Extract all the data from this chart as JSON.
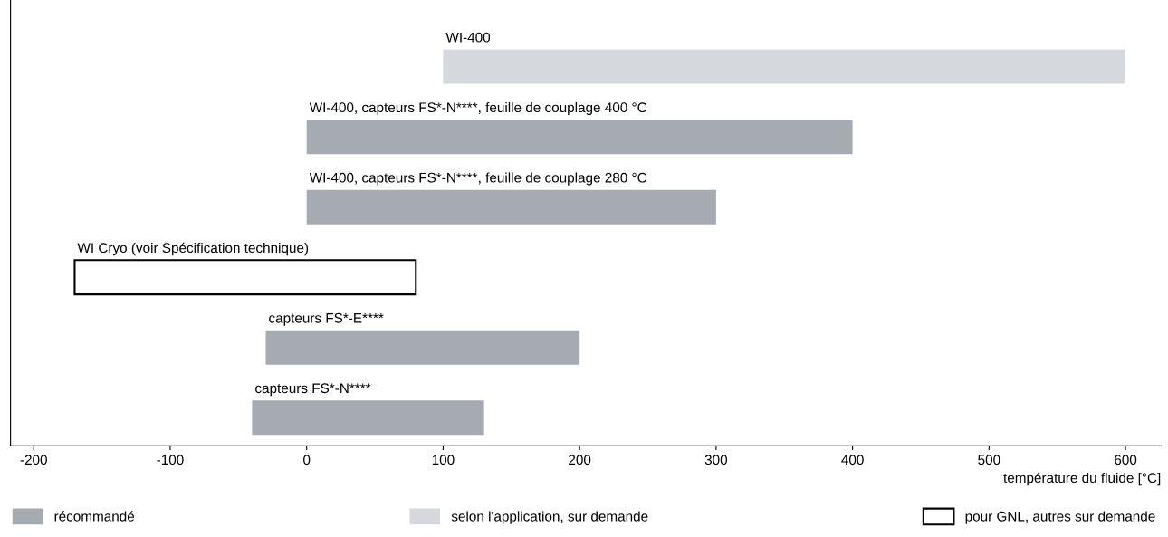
{
  "chart_data": {
    "type": "bar",
    "orientation": "horizontal",
    "xlabel": "température du fluide [°C]",
    "categories": [
      "WI-400",
      "WI-400, capteurs FS*-N****, feuille de couplage 400 °C",
      "WI-400, capteurs FS*-N****, feuille de couplage 280 °C",
      "WI Cryo (voir Spécification technique)",
      "capteurs FS*-E****",
      "capteurs FS*-N****"
    ],
    "series": [
      {
        "name": "récommandé",
        "color": "#a6abb1",
        "base": [
          null,
          0,
          0,
          null,
          -30,
          -40
        ],
        "values": [
          null,
          400,
          300,
          null,
          230,
          170
        ]
      },
      {
        "name": "selon l'application, sur demande",
        "color": "#d5d8dc",
        "base": [
          100,
          null,
          null,
          null,
          null,
          null
        ],
        "values": [
          500,
          null,
          null,
          null,
          null,
          null
        ]
      },
      {
        "name": "pour GNL, autres sur demande",
        "color": "#ffffff",
        "base": [
          null,
          null,
          null,
          -170,
          null,
          null
        ],
        "values": [
          null,
          null,
          null,
          250,
          null,
          null
        ]
      }
    ],
    "xlim": [
      -217,
      626
    ],
    "xticks": [
      -200,
      -100,
      0,
      100,
      200,
      300,
      400,
      500,
      600
    ],
    "legend": "bottom",
    "grid": false
  }
}
